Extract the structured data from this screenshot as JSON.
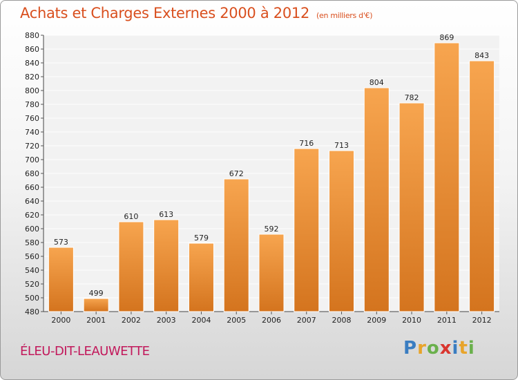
{
  "chart_data": {
    "type": "bar",
    "title": "Achats et Charges Externes 2000 à 2012",
    "subtitle": "(en milliers d'€)",
    "categories": [
      "2000",
      "2001",
      "2002",
      "2003",
      "2004",
      "2005",
      "2006",
      "2007",
      "2008",
      "2009",
      "2010",
      "2011",
      "2012"
    ],
    "values": [
      573,
      499,
      610,
      613,
      579,
      672,
      592,
      716,
      713,
      804,
      782,
      869,
      843
    ],
    "ylim": [
      480,
      880
    ],
    "yticks": [
      480,
      500,
      520,
      540,
      560,
      580,
      600,
      620,
      640,
      660,
      680,
      700,
      720,
      740,
      760,
      780,
      800,
      820,
      840,
      860,
      880
    ],
    "grid": true,
    "bar_color_top": "#f7a54f",
    "bar_color_bottom": "#d4741e"
  },
  "place_name": "ÉLEU-DIT-LEAUWETTE",
  "brand": {
    "letters": [
      "P",
      "r",
      "o",
      "x",
      "i",
      "t",
      "i"
    ],
    "colors": [
      "#3a7dc1",
      "#e8a42a",
      "#6ab04c",
      "#d9362f",
      "#3a7dc1",
      "#e8a42a",
      "#6ab04c"
    ]
  }
}
